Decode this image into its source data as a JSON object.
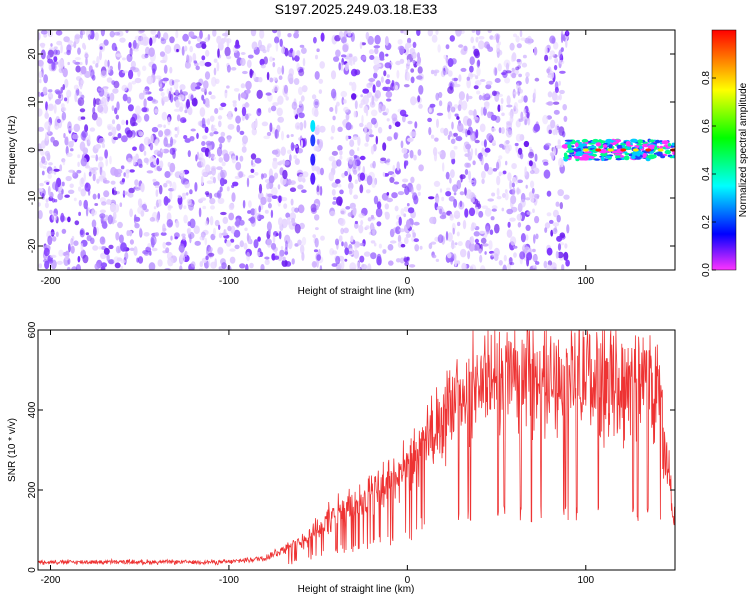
{
  "title": "S197.2025.249.03.18.E33",
  "chart_data": [
    {
      "type": "heatmap",
      "xlabel": "Height of straight line (km)",
      "ylabel": "Frequency (Hz)",
      "xlim": [
        -207,
        150
      ],
      "ylim": [
        -25,
        25
      ],
      "x_ticks": [
        -200,
        -100,
        0,
        100
      ],
      "y_ticks": [
        -20,
        -10,
        0,
        10,
        20
      ],
      "grid": false,
      "noise_region_x": [
        -207,
        90
      ],
      "vertical_gaps_x": [
        -55,
        -45,
        10,
        75
      ],
      "signal_band": {
        "x": [
          88,
          150
        ],
        "freq_center": 0,
        "freq_halfwidth": 2
      },
      "colorbar": {
        "label": "Normalized spectral amplitude",
        "range": [
          0.0,
          1.0
        ],
        "ticks": [
          0.0,
          0.2,
          0.4,
          0.6,
          0.8
        ],
        "colors": [
          "#ff33ff",
          "#0000ff",
          "#00ffff",
          "#00ff00",
          "#ffff00",
          "#ff0000"
        ]
      }
    },
    {
      "type": "line",
      "xlabel": "Height of straight line (km)",
      "ylabel": "SNR (10 * v/v)",
      "xlim": [
        -207,
        150
      ],
      "ylim": [
        0,
        600
      ],
      "x_ticks": [
        -200,
        -100,
        0,
        100
      ],
      "y_ticks": [
        0,
        200,
        400,
        600
      ],
      "grid": false,
      "color": "#ee3333",
      "envelope_x": [
        -207,
        -100,
        -80,
        -60,
        -40,
        -20,
        0,
        20,
        40,
        60,
        80,
        100,
        120,
        140,
        145,
        150
      ],
      "envelope_y": [
        20,
        20,
        30,
        70,
        140,
        190,
        250,
        370,
        470,
        490,
        480,
        480,
        470,
        470,
        300,
        120
      ],
      "dropout_level": 140,
      "dropout_start_x": 10
    }
  ]
}
